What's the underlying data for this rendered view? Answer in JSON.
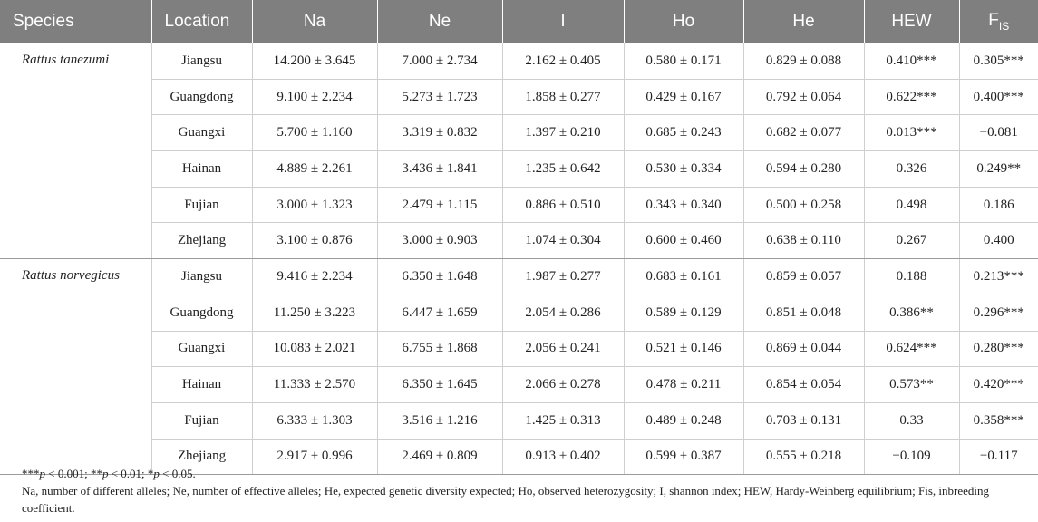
{
  "headers": {
    "species": "Species",
    "location": "Location",
    "na": "Na",
    "ne": "Ne",
    "i": "I",
    "ho": "Ho",
    "he": "He",
    "hew": "HEW",
    "fis_main": "F",
    "fis_sub": "IS"
  },
  "groups": [
    {
      "species": "Rattus tanezumi",
      "rows": [
        {
          "location": "Jiangsu",
          "na": "14.200 ± 3.645",
          "ne": "7.000 ± 2.734",
          "i": "2.162 ± 0.405",
          "ho": "0.580 ± 0.171",
          "he": "0.829 ± 0.088",
          "hew": "0.410***",
          "fis": "0.305***"
        },
        {
          "location": "Guangdong",
          "na": "9.100 ± 2.234",
          "ne": "5.273 ± 1.723",
          "i": "1.858 ± 0.277",
          "ho": "0.429 ± 0.167",
          "he": "0.792 ± 0.064",
          "hew": "0.622***",
          "fis": "0.400***"
        },
        {
          "location": "Guangxi",
          "na": "5.700 ± 1.160",
          "ne": "3.319 ± 0.832",
          "i": "1.397 ± 0.210",
          "ho": "0.685 ± 0.243",
          "he": "0.682 ± 0.077",
          "hew": "0.013***",
          "fis": "−0.081"
        },
        {
          "location": "Hainan",
          "na": "4.889 ± 2.261",
          "ne": "3.436 ± 1.841",
          "i": "1.235 ± 0.642",
          "ho": "0.530 ± 0.334",
          "he": "0.594 ± 0.280",
          "hew": "0.326",
          "fis": "0.249**"
        },
        {
          "location": "Fujian",
          "na": "3.000 ± 1.323",
          "ne": "2.479 ± 1.115",
          "i": "0.886 ± 0.510",
          "ho": "0.343 ± 0.340",
          "he": "0.500 ± 0.258",
          "hew": "0.498",
          "fis": "0.186"
        },
        {
          "location": "Zhejiang",
          "na": "3.100 ± 0.876",
          "ne": "3.000 ± 0.903",
          "i": "1.074 ± 0.304",
          "ho": "0.600 ± 0.460",
          "he": "0.638 ± 0.110",
          "hew": "0.267",
          "fis": "0.400"
        }
      ]
    },
    {
      "species": "Rattus norvegicus",
      "rows": [
        {
          "location": "Jiangsu",
          "na": "9.416 ± 2.234",
          "ne": "6.350 ± 1.648",
          "i": "1.987 ± 0.277",
          "ho": "0.683 ± 0.161",
          "he": "0.859 ± 0.057",
          "hew": "0.188",
          "fis": "0.213***"
        },
        {
          "location": "Guangdong",
          "na": "11.250 ± 3.223",
          "ne": "6.447 ± 1.659",
          "i": "2.054 ± 0.286",
          "ho": "0.589 ± 0.129",
          "he": "0.851 ± 0.048",
          "hew": "0.386**",
          "fis": "0.296***"
        },
        {
          "location": "Guangxi",
          "na": "10.083 ± 2.021",
          "ne": "6.755 ± 1.868",
          "i": "2.056 ± 0.241",
          "ho": "0.521 ± 0.146",
          "he": "0.869 ± 0.044",
          "hew": "0.624***",
          "fis": "0.280***"
        },
        {
          "location": "Hainan",
          "na": "11.333 ± 2.570",
          "ne": "6.350 ± 1.645",
          "i": "2.066 ± 0.278",
          "ho": "0.478 ± 0.211",
          "he": "0.854 ± 0.054",
          "hew": "0.573**",
          "fis": "0.420***"
        },
        {
          "location": "Fujian",
          "na": "6.333 ± 1.303",
          "ne": "3.516 ± 1.216",
          "i": "1.425 ± 0.313",
          "ho": "0.489 ± 0.248",
          "he": "0.703 ± 0.131",
          "hew": "0.33",
          "fis": "0.358***"
        },
        {
          "location": "Zhejiang",
          "na": "2.917 ± 0.996",
          "ne": "2.469 ± 0.809",
          "i": "0.913 ± 0.402",
          "ho": "0.599 ± 0.387",
          "he": "0.555 ± 0.218",
          "hew": "−0.109",
          "fis": "−0.117"
        }
      ]
    }
  ],
  "footnotes": {
    "significance": "***p < 0.001; **p < 0.01; *p < 0.05.",
    "abbreviations": "Na, number of different alleles; Ne, number of effective alleles; He, expected genetic diversity expected; Ho, observed heterozygosity; I, shannon index; HEW, Hardy-Weinberg equilibrium; Fis, inbreeding coefficient."
  }
}
